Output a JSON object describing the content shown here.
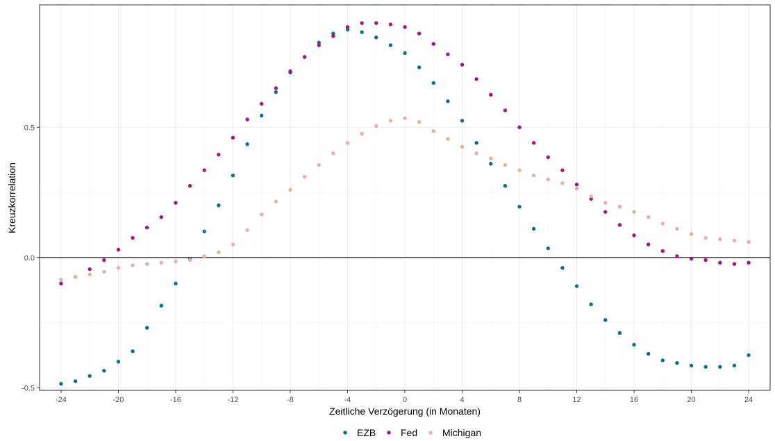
{
  "chart_data": {
    "type": "scatter",
    "xlabel": "Zeitliche Verzögerung (in Monaten)",
    "ylabel": "Kreuzkorrelation",
    "xlim": [
      -25.5,
      25.5
    ],
    "ylim": [
      -0.51,
      0.97
    ],
    "x_ticks": [
      -24,
      -20,
      -16,
      -12,
      -8,
      -4,
      0,
      4,
      8,
      12,
      16,
      20,
      24
    ],
    "x_tick_labels": [
      "-24",
      "-20",
      "-16",
      "-12",
      "-8",
      "-4",
      "0",
      "4",
      "8",
      "12",
      "16",
      "20",
      "24"
    ],
    "y_ticks": [
      -0.5,
      0.0,
      0.5
    ],
    "y_tick_labels": [
      "-0.5",
      "0.0",
      "0.5"
    ],
    "grid": true,
    "legend_position": "bottom",
    "x": [
      -24,
      -23,
      -22,
      -21,
      -20,
      -19,
      -18,
      -17,
      -16,
      -15,
      -14,
      -13,
      -12,
      -11,
      -10,
      -9,
      -8,
      -7,
      -6,
      -5,
      -4,
      -3,
      -2,
      -1,
      0,
      1,
      2,
      3,
      4,
      5,
      6,
      7,
      8,
      9,
      10,
      11,
      12,
      13,
      14,
      15,
      16,
      17,
      18,
      19,
      20,
      21,
      22,
      23,
      24
    ],
    "series": [
      {
        "name": "EZB",
        "color": "#0b7189",
        "values": [
          -0.485,
          -0.475,
          -0.455,
          -0.435,
          -0.4,
          -0.36,
          -0.27,
          -0.185,
          -0.1,
          -0.005,
          0.1,
          0.2,
          0.315,
          0.435,
          0.545,
          0.635,
          0.71,
          0.77,
          0.825,
          0.86,
          0.875,
          0.865,
          0.845,
          0.815,
          0.785,
          0.73,
          0.67,
          0.6,
          0.525,
          0.44,
          0.36,
          0.275,
          0.195,
          0.11,
          0.035,
          -0.04,
          -0.11,
          -0.18,
          -0.24,
          -0.29,
          -0.335,
          -0.37,
          -0.395,
          -0.405,
          -0.415,
          -0.42,
          -0.42,
          -0.415,
          -0.375
        ]
      },
      {
        "name": "Fed",
        "color": "#a4167f",
        "values": [
          -0.1,
          -0.075,
          -0.045,
          -0.01,
          0.03,
          0.075,
          0.115,
          0.155,
          0.21,
          0.275,
          0.335,
          0.395,
          0.46,
          0.53,
          0.59,
          0.65,
          0.715,
          0.77,
          0.815,
          0.85,
          0.885,
          0.9,
          0.9,
          0.895,
          0.885,
          0.86,
          0.82,
          0.78,
          0.74,
          0.685,
          0.625,
          0.565,
          0.5,
          0.44,
          0.385,
          0.335,
          0.28,
          0.225,
          0.175,
          0.125,
          0.085,
          0.05,
          0.025,
          0.005,
          -0.005,
          -0.01,
          -0.02,
          -0.025,
          -0.02
        ]
      },
      {
        "name": "Michigan",
        "color": "#e5b0a6",
        "values": [
          -0.085,
          -0.075,
          -0.065,
          -0.055,
          -0.04,
          -0.03,
          -0.025,
          -0.02,
          -0.015,
          -0.01,
          0.005,
          0.02,
          0.05,
          0.105,
          0.165,
          0.215,
          0.26,
          0.31,
          0.355,
          0.4,
          0.44,
          0.475,
          0.505,
          0.525,
          0.535,
          0.52,
          0.485,
          0.455,
          0.425,
          0.4,
          0.38,
          0.355,
          0.335,
          0.315,
          0.3,
          0.285,
          0.265,
          0.235,
          0.21,
          0.195,
          0.175,
          0.155,
          0.13,
          0.11,
          0.09,
          0.075,
          0.07,
          0.065,
          0.06
        ]
      }
    ]
  }
}
